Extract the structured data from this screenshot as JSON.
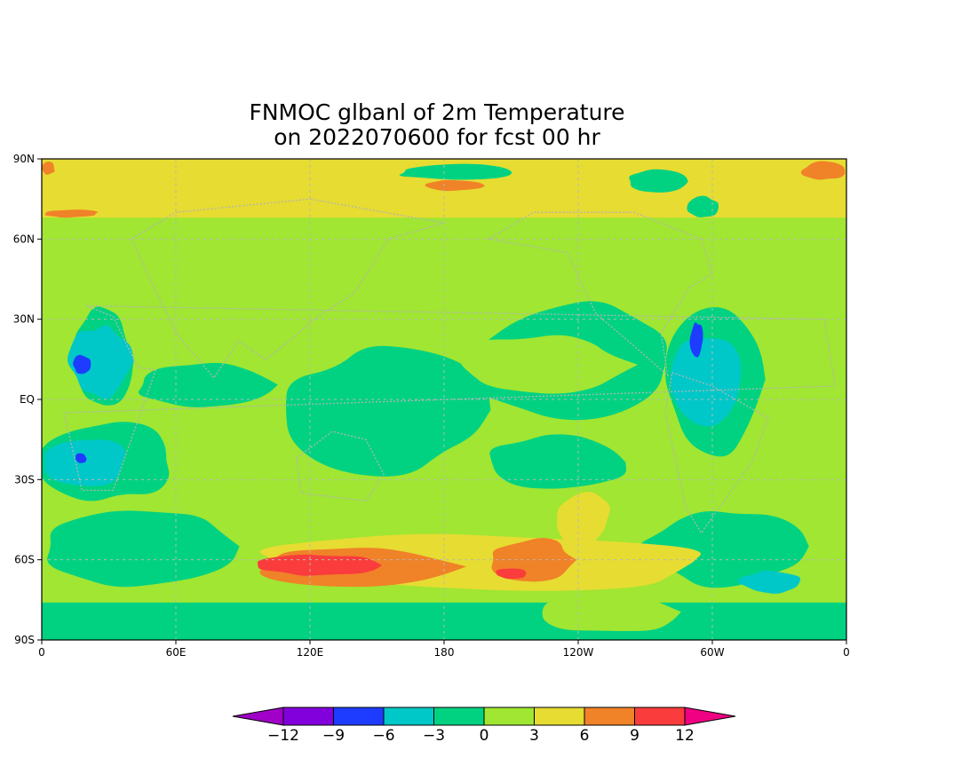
{
  "title": {
    "line1": "FNMOC glbanl of 2m Temperature",
    "line2": "on 2022070600 for fcst 00 hr"
  },
  "map": {
    "projection": "cylindrical equidistant, longitude 0 to 360 (0 to 0), latitude 90S to 90N",
    "lon_range": [
      0,
      360
    ],
    "lat_range": [
      -90,
      90
    ],
    "grid": true,
    "coastlines": "dotted",
    "xticks": [
      {
        "lon": 0,
        "label": "0"
      },
      {
        "lon": 60,
        "label": "60E"
      },
      {
        "lon": 120,
        "label": "120E"
      },
      {
        "lon": 180,
        "label": "180"
      },
      {
        "lon": 240,
        "label": "120W"
      },
      {
        "lon": 300,
        "label": "60W"
      },
      {
        "lon": 360,
        "label": "0"
      }
    ],
    "yticks": [
      {
        "lat": 90,
        "label": "90N"
      },
      {
        "lat": 60,
        "label": "60N"
      },
      {
        "lat": 30,
        "label": "30N"
      },
      {
        "lat": 0,
        "label": "EQ"
      },
      {
        "lat": -30,
        "label": "30S"
      },
      {
        "lat": -60,
        "label": "60S"
      },
      {
        "lat": -90,
        "label": "90S"
      }
    ]
  },
  "chart_data": {
    "type": "heatmap",
    "title": "FNMOC glbanl of 2m Temperature on 2022070600 for fcst 00 hr",
    "background_bin": "0 to 3",
    "colorbar": {
      "bins": [
        {
          "range": "< -12",
          "color": "#a000c8"
        },
        {
          "range": "-12 to -9",
          "color": "#8200dc"
        },
        {
          "range": "-9 to -6",
          "color": "#1e3cff"
        },
        {
          "range": "-6 to -3",
          "color": "#00c8c8"
        },
        {
          "range": "-3 to 0",
          "color": "#00d282"
        },
        {
          "range": "0 to 3",
          "color": "#a0e632"
        },
        {
          "range": "3 to 6",
          "color": "#e6dc32"
        },
        {
          "range": "6 to 9",
          "color": "#f08228"
        },
        {
          "range": "9 to 12",
          "color": "#fa3c3c"
        },
        {
          "range": "> 12",
          "color": "#f00082"
        }
      ],
      "labels": [
        "-12",
        "-9",
        "-6",
        "-3",
        "0",
        "3",
        "6",
        "9",
        "12"
      ]
    },
    "regions": [
      {
        "name": "arctic-warm-band",
        "bin": "3 to 6",
        "lon": [
          0,
          360
        ],
        "lat": [
          68,
          90
        ]
      },
      {
        "name": "arctic-very-warm-west",
        "bin": "6 to 9",
        "lon": [
          0,
          6
        ],
        "lat": [
          84,
          89
        ]
      },
      {
        "name": "arctic-very-warm-east",
        "bin": "6 to 9",
        "lon": [
          340,
          360
        ],
        "lat": [
          82,
          89
        ]
      },
      {
        "name": "arctic-warm-patch-170",
        "bin": "6 to 9",
        "lon": [
          170,
          197
        ],
        "lat": [
          78,
          82
        ]
      },
      {
        "name": "arctic-cool-patch-165",
        "bin": "-3 to 0",
        "lon": [
          158,
          215
        ],
        "lat": [
          82,
          88
        ]
      },
      {
        "name": "arctic-cool-patch-270",
        "bin": "-3 to 0",
        "lon": [
          262,
          290
        ],
        "lat": [
          77,
          86
        ]
      },
      {
        "name": "arctic-cool-patch-295",
        "bin": "-3 to 0",
        "lon": [
          288,
          303
        ],
        "lat": [
          68,
          76
        ]
      },
      {
        "name": "arctic-edge-warm-0",
        "bin": "6 to 9",
        "lon": [
          0,
          26
        ],
        "lat": [
          68,
          71
        ]
      },
      {
        "name": "africa-cool",
        "bin": "-3 to 0",
        "lon": [
          13,
          40
        ],
        "lat": [
          -5,
          35
        ]
      },
      {
        "name": "africa-cold-core",
        "bin": "-6 to -3",
        "lon": [
          12,
          40
        ],
        "lat": [
          0,
          28
        ]
      },
      {
        "name": "africa-coldest",
        "bin": "-9 to -6",
        "lon": [
          14,
          22
        ],
        "lat": [
          9,
          17
        ]
      },
      {
        "name": "southern-africa-cool",
        "bin": "-3 to 0",
        "lon": [
          0,
          60
        ],
        "lat": [
          -38,
          -8
        ]
      },
      {
        "name": "southern-africa-cold",
        "bin": "-6 to -3",
        "lon": [
          0,
          38
        ],
        "lat": [
          -33,
          -14
        ]
      },
      {
        "name": "southern-africa-coldest",
        "bin": "-9 to -6",
        "lon": [
          15,
          20
        ],
        "lat": [
          -24,
          -20
        ]
      },
      {
        "name": "indian-ocean-cool",
        "bin": "-3 to 0",
        "lon": [
          40,
          105
        ],
        "lat": [
          -3,
          14
        ]
      },
      {
        "name": "western-pacific-cool",
        "bin": "-3 to 0",
        "lon": [
          110,
          200
        ],
        "lat": [
          -28,
          20
        ]
      },
      {
        "name": "north-pacific-cool",
        "bin": "-3 to 0",
        "lon": [
          190,
          287
        ],
        "lat": [
          -12,
          38
        ]
      },
      {
        "name": "north-pacific-warm-core",
        "bin": "0 to 3",
        "lon": [
          183,
          262
        ],
        "lat": [
          2,
          24
        ]
      },
      {
        "name": "south-pacific-cool",
        "bin": "-3 to 0",
        "lon": [
          200,
          265
        ],
        "lat": [
          -35,
          -12
        ]
      },
      {
        "name": "south-america-cool",
        "bin": "-3 to 0",
        "lon": [
          280,
          325
        ],
        "lat": [
          -20,
          35
        ]
      },
      {
        "name": "south-america-cold",
        "bin": "-6 to -3",
        "lon": [
          282,
          313
        ],
        "lat": [
          -10,
          24
        ]
      },
      {
        "name": "south-america-coldest",
        "bin": "-9 to -6",
        "lon": [
          290,
          296
        ],
        "lat": [
          16,
          29
        ]
      },
      {
        "name": "southern-ocean-cool-west",
        "bin": "-3 to 0",
        "lon": [
          0,
          88
        ],
        "lat": [
          -70,
          -40
        ]
      },
      {
        "name": "southern-ocean-cool-east",
        "bin": "-3 to 0",
        "lon": [
          268,
          340
        ],
        "lat": [
          -70,
          -40
        ]
      },
      {
        "name": "southern-ocean-warm-band",
        "bin": "3 to 6",
        "lon": [
          88,
          305
        ],
        "lat": [
          -72,
          -50
        ]
      },
      {
        "name": "southern-ocean-very-warm-1",
        "bin": "6 to 9",
        "lon": [
          92,
          185
        ],
        "lat": [
          -70,
          -55
        ]
      },
      {
        "name": "southern-ocean-hot-1",
        "bin": "9 to 12",
        "lon": [
          95,
          152
        ],
        "lat": [
          -66,
          -58
        ]
      },
      {
        "name": "southern-ocean-very-warm-2",
        "bin": "6 to 9",
        "lon": [
          200,
          238
        ],
        "lat": [
          -68,
          -52
        ]
      },
      {
        "name": "southern-ocean-hot-2",
        "bin": "9 to 12",
        "lon": [
          202,
          218
        ],
        "lat": [
          -67,
          -63
        ]
      },
      {
        "name": "southern-ocean-warm-tendril",
        "bin": "3 to 6",
        "lon": [
          230,
          255
        ],
        "lat": [
          -55,
          -35
        ]
      },
      {
        "name": "antarctica-cool",
        "bin": "-3 to 0",
        "lon": [
          0,
          360
        ],
        "lat": [
          -90,
          -76
        ]
      },
      {
        "name": "antarctica-interior",
        "bin": "0 to 3",
        "lon": [
          222,
          285
        ],
        "lat": [
          -88,
          -71
        ]
      },
      {
        "name": "antarctica-cold-peninsula",
        "bin": "-6 to -3",
        "lon": [
          312,
          340
        ],
        "lat": [
          -73,
          -64
        ]
      }
    ]
  }
}
